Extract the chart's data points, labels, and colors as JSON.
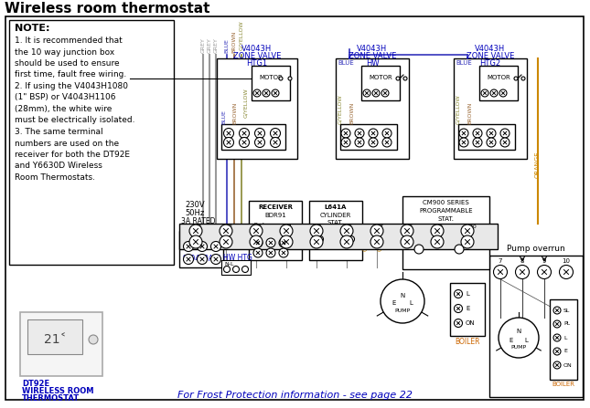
{
  "title": "Wireless room thermostat",
  "bg_color": "#ffffff",
  "bottom_text": "For Frost Protection information - see page 22",
  "label_color_blue": "#0000bb",
  "label_color_orange": "#cc6600",
  "wire_colors": {
    "grey": "#999999",
    "blue": "#3333bb",
    "brown": "#996633",
    "gyellow": "#888833",
    "orange": "#cc8800",
    "black": "#000000"
  },
  "note_lines": [
    "1. It is recommended that",
    "the 10 way junction box",
    "should be used to ensure",
    "first time, fault free wiring.",
    "2. If using the V4043H1080",
    "(1\" BSP) or V4043H1106",
    "(28mm), the white wire",
    "must be electrically isolated.",
    "3. The same terminal",
    "numbers are used on the",
    "receiver for both the DT92E",
    "and Y6630D Wireless",
    "Room Thermostats."
  ]
}
